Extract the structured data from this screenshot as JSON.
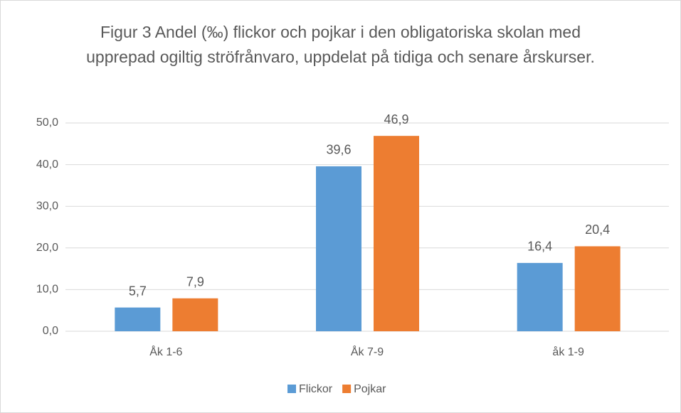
{
  "chart_data": {
    "type": "bar",
    "title": "Figur 3 Andel (‰) flickor och pojkar i den obligatoriska skolan med upprepad ogiltig ströfrånvaro, uppdelat på tidiga och senare årskurser.",
    "categories": [
      "Åk 1-6",
      "Åk 7-9",
      "åk 1-9"
    ],
    "series": [
      {
        "name": "Flickor",
        "color": "#5b9bd5",
        "values": [
          5.7,
          39.6,
          16.4
        ],
        "value_labels": [
          "5,7",
          "39,6",
          "16,4"
        ]
      },
      {
        "name": "Pojkar",
        "color": "#ed7d31",
        "values": [
          7.9,
          46.9,
          20.4
        ],
        "value_labels": [
          "7,9",
          "46,9",
          "20,4"
        ]
      }
    ],
    "ylim": [
      0,
      50
    ],
    "yticks": [
      {
        "value": 0,
        "label": "0,0"
      },
      {
        "value": 10,
        "label": "10,0"
      },
      {
        "value": 20,
        "label": "20,0"
      },
      {
        "value": 30,
        "label": "30,0"
      },
      {
        "value": 40,
        "label": "40,0"
      },
      {
        "value": 50,
        "label": "50,0"
      }
    ],
    "grid": true,
    "legend": "bottom"
  }
}
